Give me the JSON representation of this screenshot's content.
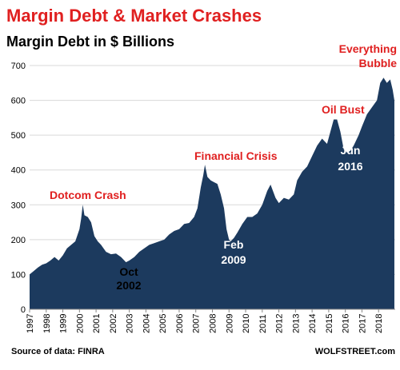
{
  "chart_data": {
    "type": "area",
    "title": "Margin Debt & Market Crashes",
    "subtitle": "Margin Debt in $ Billions",
    "source": "Source of data: FINRA",
    "brand": "WOLFSTREET.com",
    "y_ticks": [
      0,
      100,
      200,
      300,
      400,
      500,
      600,
      700
    ],
    "ylim": [
      0,
      700
    ],
    "x_tick_labels": [
      "1997",
      "1998",
      "1999",
      "2000",
      "2001",
      "2002",
      "2003",
      "2004",
      "2005",
      "2006",
      "2007",
      "2008",
      "2009",
      "2010",
      "2011",
      "2012",
      "2013",
      "2014",
      "2015",
      "2016",
      "2017",
      "2018"
    ],
    "xlim": [
      1997.0,
      2019.0
    ],
    "series_color": "#1c3a5e",
    "title_color": "#e02020",
    "annotation_color": "#e02020",
    "annotations": {
      "dotcom": "Dotcom Crash",
      "financial": "Financial Crisis",
      "oilbust": "Oil Bust",
      "everything_1": "Everything",
      "everything_2": "Bubble",
      "oct_1": "Oct",
      "oct_2": "2002",
      "feb_1": "Feb",
      "feb_2": "2009",
      "jun_1": "Jun",
      "jun_2": "2016"
    },
    "points": [
      [
        1997.0,
        100
      ],
      [
        1997.25,
        110
      ],
      [
        1997.5,
        120
      ],
      [
        1997.75,
        128
      ],
      [
        1998.0,
        132
      ],
      [
        1998.25,
        140
      ],
      [
        1998.5,
        150
      ],
      [
        1998.75,
        140
      ],
      [
        1999.0,
        155
      ],
      [
        1999.25,
        175
      ],
      [
        1999.5,
        185
      ],
      [
        1999.75,
        195
      ],
      [
        2000.0,
        230
      ],
      [
        2000.1,
        260
      ],
      [
        2000.2,
        300
      ],
      [
        2000.3,
        270
      ],
      [
        2000.5,
        265
      ],
      [
        2000.7,
        250
      ],
      [
        2000.9,
        210
      ],
      [
        2001.1,
        195
      ],
      [
        2001.3,
        185
      ],
      [
        2001.6,
        165
      ],
      [
        2001.9,
        158
      ],
      [
        2002.2,
        160
      ],
      [
        2002.5,
        150
      ],
      [
        2002.8,
        135
      ],
      [
        2003.0,
        140
      ],
      [
        2003.3,
        150
      ],
      [
        2003.6,
        165
      ],
      [
        2003.9,
        175
      ],
      [
        2004.2,
        185
      ],
      [
        2004.5,
        190
      ],
      [
        2004.8,
        195
      ],
      [
        2005.1,
        200
      ],
      [
        2005.4,
        215
      ],
      [
        2005.7,
        225
      ],
      [
        2006.0,
        230
      ],
      [
        2006.3,
        245
      ],
      [
        2006.6,
        248
      ],
      [
        2006.9,
        265
      ],
      [
        2007.1,
        290
      ],
      [
        2007.3,
        350
      ],
      [
        2007.45,
        385
      ],
      [
        2007.55,
        415
      ],
      [
        2007.7,
        380
      ],
      [
        2007.9,
        370
      ],
      [
        2008.1,
        365
      ],
      [
        2008.3,
        360
      ],
      [
        2008.5,
        330
      ],
      [
        2008.7,
        290
      ],
      [
        2008.85,
        230
      ],
      [
        2009.0,
        200
      ],
      [
        2009.1,
        195
      ],
      [
        2009.3,
        205
      ],
      [
        2009.5,
        220
      ],
      [
        2009.8,
        245
      ],
      [
        2010.1,
        265
      ],
      [
        2010.4,
        265
      ],
      [
        2010.7,
        275
      ],
      [
        2011.0,
        300
      ],
      [
        2011.3,
        340
      ],
      [
        2011.5,
        358
      ],
      [
        2011.8,
        320
      ],
      [
        2012.0,
        305
      ],
      [
        2012.3,
        320
      ],
      [
        2012.6,
        315
      ],
      [
        2012.9,
        330
      ],
      [
        2013.1,
        370
      ],
      [
        2013.4,
        395
      ],
      [
        2013.7,
        410
      ],
      [
        2014.0,
        440
      ],
      [
        2014.3,
        470
      ],
      [
        2014.6,
        490
      ],
      [
        2014.9,
        475
      ],
      [
        2015.1,
        510
      ],
      [
        2015.3,
        545
      ],
      [
        2015.5,
        545
      ],
      [
        2015.7,
        510
      ],
      [
        2015.9,
        460
      ],
      [
        2016.1,
        450
      ],
      [
        2016.3,
        455
      ],
      [
        2016.5,
        470
      ],
      [
        2016.8,
        500
      ],
      [
        2017.0,
        525
      ],
      [
        2017.3,
        560
      ],
      [
        2017.6,
        580
      ],
      [
        2017.9,
        600
      ],
      [
        2018.1,
        650
      ],
      [
        2018.3,
        665
      ],
      [
        2018.5,
        650
      ],
      [
        2018.7,
        660
      ],
      [
        2018.85,
        630
      ],
      [
        2018.95,
        600
      ]
    ]
  }
}
